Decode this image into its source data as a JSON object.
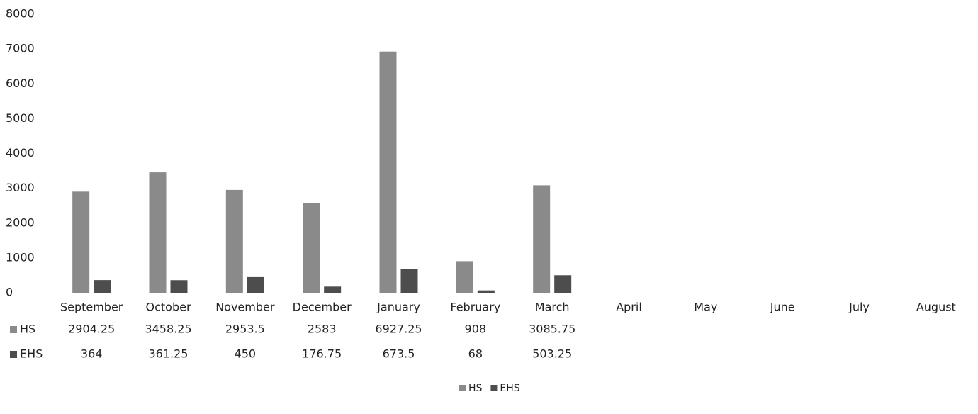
{
  "chart_data": {
    "type": "bar",
    "categories": [
      "September",
      "October",
      "November",
      "December",
      "January",
      "February",
      "March",
      "April",
      "May",
      "June",
      "July",
      "August"
    ],
    "series": [
      {
        "name": "HS",
        "color": "#8a8a8a",
        "values": [
          2904.25,
          3458.25,
          2953.5,
          2583,
          6927.25,
          908,
          3085.75,
          null,
          null,
          null,
          null,
          null
        ]
      },
      {
        "name": "EHS",
        "color": "#4d4d4d",
        "values": [
          364,
          361.25,
          450,
          176.75,
          673.5,
          68,
          503.25,
          null,
          null,
          null,
          null,
          null
        ]
      }
    ],
    "ylim": [
      0,
      8000
    ],
    "yticks": [
      0,
      1000,
      2000,
      3000,
      4000,
      5000,
      6000,
      7000,
      8000
    ],
    "grid": false,
    "data_table": true,
    "legend": "bottom"
  }
}
